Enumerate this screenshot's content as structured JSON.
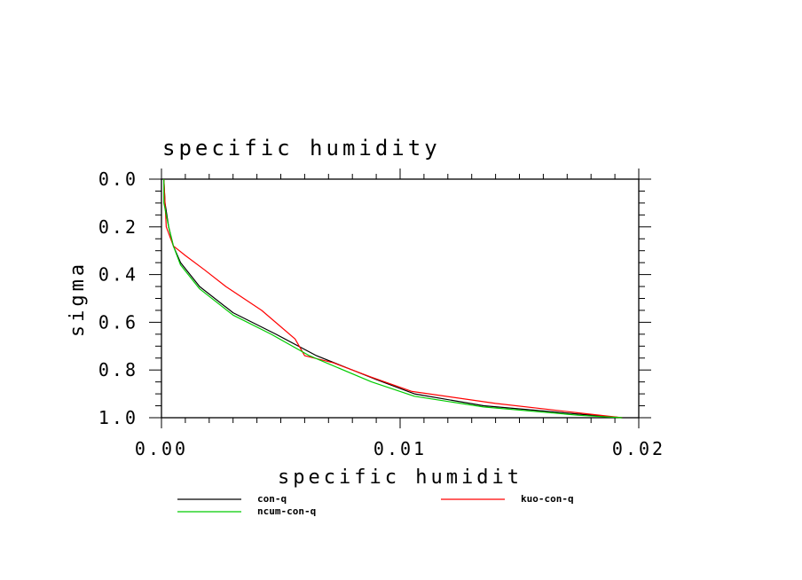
{
  "chart_data": {
    "type": "line",
    "title": "specific humidity",
    "xlabel": "specific humidit",
    "ylabel": "sigma",
    "xlim": [
      0,
      0.02
    ],
    "ylim": [
      0.0,
      1.0
    ],
    "y_inverted": true,
    "x_ticks": [
      "0.00",
      "0.01",
      "0.02"
    ],
    "y_ticks": [
      "0.0",
      "0.2",
      "0.4",
      "0.6",
      "0.8",
      "1.0"
    ],
    "grid": false,
    "legend_position": "bottom",
    "series": [
      {
        "name": "con-q",
        "color": "#000000",
        "points": [
          [
            0.0001,
            0.0
          ],
          [
            0.00015,
            0.1
          ],
          [
            0.0003,
            0.2
          ],
          [
            0.0005,
            0.28
          ],
          [
            0.0008,
            0.35
          ],
          [
            0.0016,
            0.45
          ],
          [
            0.003,
            0.56
          ],
          [
            0.0048,
            0.65
          ],
          [
            0.0065,
            0.74
          ],
          [
            0.009,
            0.84
          ],
          [
            0.0106,
            0.9
          ],
          [
            0.0135,
            0.95
          ],
          [
            0.0175,
            0.985
          ],
          [
            0.0193,
            1.0
          ]
        ]
      },
      {
        "name": "kuo-con-q",
        "color": "#ff0000",
        "points": [
          [
            0.0001,
            0.0
          ],
          [
            0.00015,
            0.1
          ],
          [
            0.0002,
            0.2
          ],
          [
            0.0005,
            0.28
          ],
          [
            0.001,
            0.32
          ],
          [
            0.0018,
            0.38
          ],
          [
            0.0027,
            0.45
          ],
          [
            0.0042,
            0.55
          ],
          [
            0.0056,
            0.67
          ],
          [
            0.006,
            0.74
          ],
          [
            0.0072,
            0.77
          ],
          [
            0.0088,
            0.83
          ],
          [
            0.0105,
            0.89
          ],
          [
            0.014,
            0.94
          ],
          [
            0.0175,
            0.98
          ],
          [
            0.0193,
            1.0
          ]
        ]
      },
      {
        "name": "ncum-con-q",
        "color": "#00cc00",
        "points": [
          [
            0.0001,
            0.0
          ],
          [
            0.0001,
            0.1
          ],
          [
            0.0003,
            0.2
          ],
          [
            0.0005,
            0.28
          ],
          [
            0.0008,
            0.36
          ],
          [
            0.0016,
            0.46
          ],
          [
            0.003,
            0.57
          ],
          [
            0.0046,
            0.65
          ],
          [
            0.0062,
            0.74
          ],
          [
            0.0088,
            0.85
          ],
          [
            0.0106,
            0.91
          ],
          [
            0.0135,
            0.955
          ],
          [
            0.0175,
            0.99
          ],
          [
            0.0193,
            1.0
          ]
        ]
      }
    ]
  }
}
